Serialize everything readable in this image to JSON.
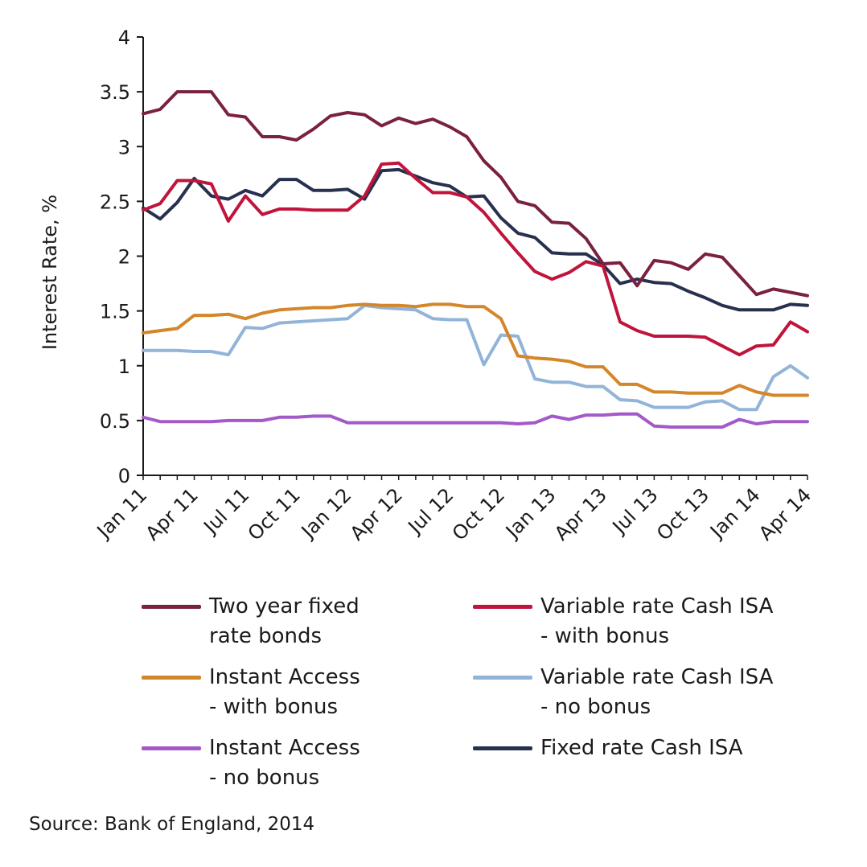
{
  "chart_data": {
    "type": "line",
    "title": "",
    "xlabel": "",
    "ylabel": "Interest Rate, %",
    "ylim": [
      0,
      4
    ],
    "yticks": [
      "0",
      "0.5",
      "1",
      "1.5",
      "2",
      "2.5",
      "3",
      "3.5",
      "4"
    ],
    "x_tick_labels": [
      "Jan 11",
      "Apr 11",
      "Jul 11",
      "Oct 11",
      "Jan 12",
      "Apr 12",
      "Jul 12",
      "Oct 12",
      "Jan 13",
      "Apr 13",
      "Jul 13",
      "Oct 13",
      "Jan 14",
      "Apr 14"
    ],
    "x": [
      "Jan 11",
      "Feb 11",
      "Mar 11",
      "Apr 11",
      "May 11",
      "Jun 11",
      "Jul 11",
      "Aug 11",
      "Sep 11",
      "Oct 11",
      "Nov 11",
      "Dec 11",
      "Jan 12",
      "Feb 12",
      "Mar 12",
      "Apr 12",
      "May 12",
      "Jun 12",
      "Jul 12",
      "Aug 12",
      "Sep 12",
      "Oct 12",
      "Nov 12",
      "Dec 12",
      "Jan 13",
      "Feb 13",
      "Mar 13",
      "Apr 13",
      "May 13",
      "Jun 13",
      "Jul 13",
      "Aug 13",
      "Sep 13",
      "Oct 13",
      "Nov 13",
      "Dec 13",
      "Jan 14",
      "Feb 14",
      "Mar 14",
      "Apr 14"
    ],
    "grid": false,
    "legend_position": "bottom",
    "series": [
      {
        "name": "Two year fixed\nrate bonds",
        "color": "#7b2140",
        "values": [
          3.3,
          3.34,
          3.5,
          3.5,
          3.5,
          3.29,
          3.27,
          3.09,
          3.09,
          3.06,
          3.16,
          3.28,
          3.31,
          3.29,
          3.19,
          3.26,
          3.21,
          3.25,
          3.18,
          3.09,
          2.87,
          2.72,
          2.5,
          2.46,
          2.31,
          2.3,
          2.16,
          1.93,
          1.94,
          1.73,
          1.96,
          1.94,
          1.88,
          2.02,
          1.99,
          1.82,
          1.65,
          1.7,
          1.67,
          1.64
        ]
      },
      {
        "name": "Variable rate Cash ISA\n- with bonus",
        "color": "#c0143c",
        "values": [
          2.42,
          2.48,
          2.69,
          2.69,
          2.66,
          2.32,
          2.55,
          2.38,
          2.43,
          2.43,
          2.42,
          2.42,
          2.42,
          2.55,
          2.84,
          2.85,
          2.71,
          2.58,
          2.58,
          2.54,
          2.4,
          2.21,
          2.03,
          1.86,
          1.79,
          1.85,
          1.95,
          1.91,
          1.4,
          1.32,
          1.27,
          1.27,
          1.27,
          1.26,
          1.18,
          1.1,
          1.18,
          1.19,
          1.4,
          1.31
        ]
      },
      {
        "name": "Instant Access\n- with bonus",
        "color": "#d4862a",
        "values": [
          1.3,
          1.32,
          1.34,
          1.46,
          1.46,
          1.47,
          1.43,
          1.48,
          1.51,
          1.52,
          1.53,
          1.53,
          1.55,
          1.56,
          1.55,
          1.55,
          1.54,
          1.56,
          1.56,
          1.54,
          1.54,
          1.43,
          1.09,
          1.07,
          1.06,
          1.04,
          0.99,
          0.99,
          0.83,
          0.83,
          0.76,
          0.76,
          0.75,
          0.75,
          0.75,
          0.82,
          0.76,
          0.73,
          0.73,
          0.73
        ]
      },
      {
        "name": "Variable rate Cash ISA\n- no bonus",
        "color": "#92b4d8",
        "values": [
          1.14,
          1.14,
          1.14,
          1.13,
          1.13,
          1.1,
          1.35,
          1.34,
          1.39,
          1.4,
          1.41,
          1.42,
          1.43,
          1.55,
          1.53,
          1.52,
          1.51,
          1.43,
          1.42,
          1.42,
          1.01,
          1.28,
          1.27,
          0.88,
          0.85,
          0.85,
          0.81,
          0.81,
          0.69,
          0.68,
          0.62,
          0.62,
          0.62,
          0.67,
          0.68,
          0.6,
          0.6,
          0.9,
          1.0,
          0.89
        ]
      },
      {
        "name": "Instant Access\n- no bonus",
        "color": "#a459c9",
        "values": [
          0.53,
          0.49,
          0.49,
          0.49,
          0.49,
          0.5,
          0.5,
          0.5,
          0.53,
          0.53,
          0.54,
          0.54,
          0.48,
          0.48,
          0.48,
          0.48,
          0.48,
          0.48,
          0.48,
          0.48,
          0.48,
          0.48,
          0.47,
          0.48,
          0.54,
          0.51,
          0.55,
          0.55,
          0.56,
          0.56,
          0.45,
          0.44,
          0.44,
          0.44,
          0.44,
          0.51,
          0.47,
          0.49,
          0.49,
          0.49
        ]
      },
      {
        "name": "Fixed rate Cash ISA",
        "color": "#27304f",
        "values": [
          2.44,
          2.34,
          2.49,
          2.71,
          2.55,
          2.52,
          2.6,
          2.55,
          2.7,
          2.7,
          2.6,
          2.6,
          2.61,
          2.52,
          2.78,
          2.79,
          2.73,
          2.67,
          2.64,
          2.54,
          2.55,
          2.35,
          2.21,
          2.17,
          2.03,
          2.02,
          2.02,
          1.92,
          1.75,
          1.79,
          1.76,
          1.75,
          1.68,
          1.62,
          1.55,
          1.51,
          1.51,
          1.51,
          1.56,
          1.55
        ]
      }
    ]
  },
  "source": "Source: Bank of England, 2014"
}
